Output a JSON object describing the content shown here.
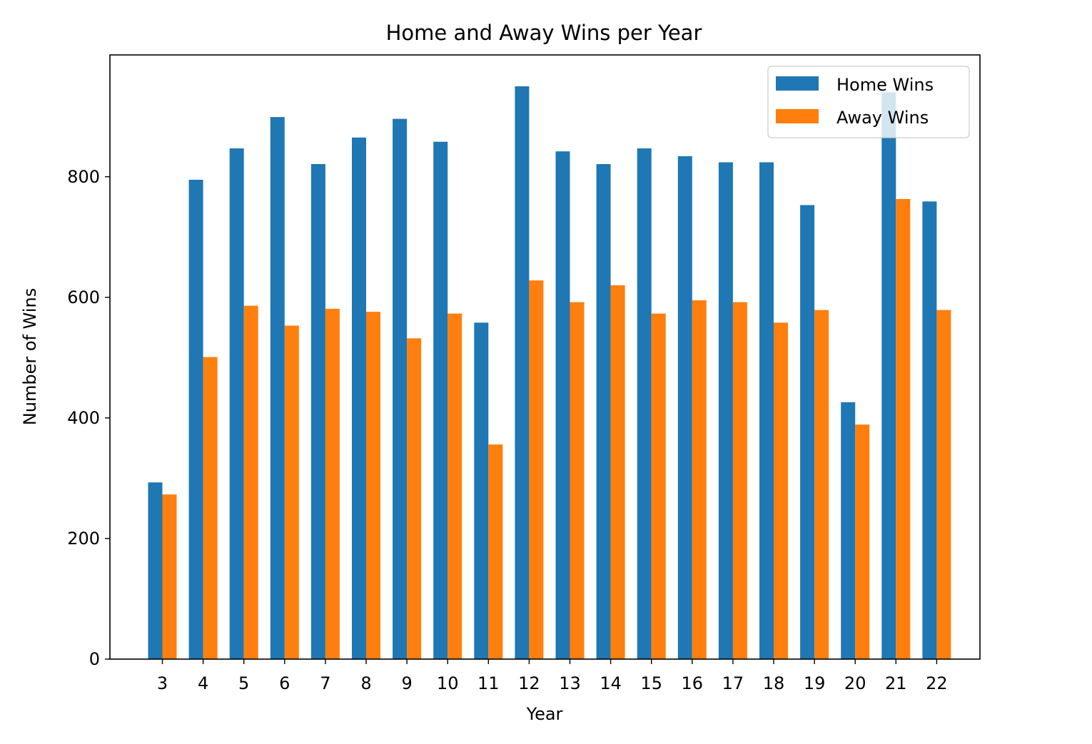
{
  "chart_data": {
    "type": "bar",
    "title": "Home and Away Wins per Year",
    "xlabel": "Year",
    "ylabel": "Number of Wins",
    "categories": [
      "3",
      "4",
      "5",
      "6",
      "7",
      "8",
      "9",
      "10",
      "11",
      "12",
      "13",
      "14",
      "15",
      "16",
      "17",
      "18",
      "19",
      "20",
      "21",
      "22"
    ],
    "series": [
      {
        "name": "Home Wins",
        "color": "#1f77b4",
        "values": [
          293,
          795,
          847,
          899,
          821,
          865,
          896,
          858,
          558,
          950,
          842,
          821,
          847,
          834,
          824,
          824,
          753,
          426,
          940,
          759
        ]
      },
      {
        "name": "Away Wins",
        "color": "#ff7f0e",
        "values": [
          273,
          501,
          586,
          553,
          581,
          576,
          532,
          573,
          356,
          628,
          592,
          620,
          573,
          595,
          592,
          558,
          579,
          389,
          763,
          579
        ]
      }
    ],
    "yticks": [
      0,
      200,
      400,
      600,
      800
    ],
    "ylim": [
      0,
      1002
    ],
    "grid": false,
    "legend_position": "upper right"
  }
}
